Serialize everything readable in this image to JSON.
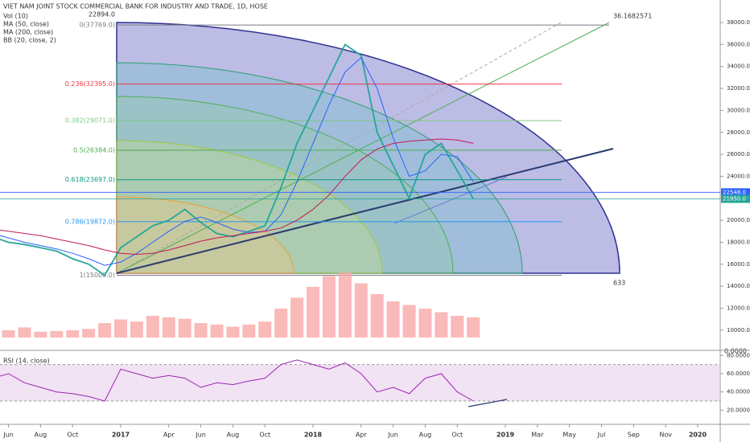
{
  "chart_data": {
    "type": "line",
    "title": "VIET NAM JOINT STOCK COMMERCIAL BANK FOR INDUSTRY AND TRADE, 1D, HOSE",
    "legend": [
      "Vol (10)",
      "MA (50, close)",
      "MA (200, close)",
      "BB (20, close, 2)"
    ],
    "x": [
      "2016-05",
      "2016-06",
      "2016-07",
      "2016-08",
      "2016-09",
      "2016-10",
      "2016-11",
      "2016-12",
      "2017-01",
      "2017-02",
      "2017-03",
      "2017-04",
      "2017-05",
      "2017-06",
      "2017-07",
      "2017-08",
      "2017-09",
      "2017-10",
      "2017-11",
      "2017-12",
      "2018-01",
      "2018-02",
      "2018-03",
      "2018-04",
      "2018-05",
      "2018-06",
      "2018-07",
      "2018-08",
      "2018-09",
      "2018-10",
      "2018-11"
    ],
    "series": [
      {
        "name": "Close",
        "color": "#26a69a",
        "values": [
          18500,
          18000,
          17800,
          17500,
          17200,
          16500,
          16000,
          15000,
          17500,
          18500,
          19500,
          20000,
          21000,
          19800,
          18800,
          18500,
          19000,
          19500,
          23000,
          27000,
          30000,
          33000,
          36000,
          35000,
          28000,
          25000,
          22000,
          26000,
          27000,
          24500,
          21950
        ]
      },
      {
        "name": "MA (50, close)",
        "color": "#2962ff",
        "values": [
          18800,
          18400,
          18000,
          17700,
          17400,
          17000,
          16500,
          15900,
          16200,
          17000,
          18000,
          19000,
          19900,
          20300,
          19800,
          19200,
          18900,
          19000,
          20500,
          23500,
          27000,
          30500,
          33500,
          34800,
          32000,
          27500,
          24000,
          24500,
          26000,
          25800,
          23500
        ]
      },
      {
        "name": "MA (200, close)",
        "color": "#c2185b",
        "values": [
          19200,
          19000,
          18800,
          18600,
          18300,
          18000,
          17700,
          17300,
          17000,
          16900,
          17000,
          17300,
          17700,
          18100,
          18400,
          18600,
          18800,
          19000,
          19300,
          20000,
          21000,
          22300,
          24000,
          25500,
          26500,
          27000,
          27200,
          27300,
          27400,
          27300,
          27000
        ]
      }
    ],
    "ylim": [
      8600,
      40050
    ],
    "yticks": [
      {
        "value": 10000,
        "label": "10000.0"
      },
      {
        "value": 12000,
        "label": "12000.0"
      },
      {
        "value": 14000,
        "label": "14000.0"
      },
      {
        "value": 16000,
        "label": "16000.0"
      },
      {
        "value": 18000,
        "label": "18000.0"
      },
      {
        "value": 20000,
        "label": "20000.0"
      },
      {
        "value": 22000,
        "label": "22000.0"
      },
      {
        "value": 24000,
        "label": "24000.0"
      },
      {
        "value": 26000,
        "label": "26000.0"
      },
      {
        "value": 28000,
        "label": "28000.0"
      },
      {
        "value": 30000,
        "label": "30000.0"
      },
      {
        "value": 32000,
        "label": "32000.0"
      },
      {
        "value": 34000,
        "label": "34000.0"
      },
      {
        "value": 36000,
        "label": "36000.0"
      },
      {
        "value": 38000,
        "label": "38000.0"
      }
    ],
    "xticks": [
      {
        "value": "2016-06",
        "label": "Jun"
      },
      {
        "value": "2016-08",
        "label": "Aug"
      },
      {
        "value": "2016-10",
        "label": "Oct"
      },
      {
        "value": "2017-01",
        "label": "2017"
      },
      {
        "value": "2017-04",
        "label": "Apr"
      },
      {
        "value": "2017-06",
        "label": "Jun"
      },
      {
        "value": "2017-08",
        "label": "Aug"
      },
      {
        "value": "2017-10",
        "label": "Oct"
      },
      {
        "value": "2018-01",
        "label": "2018"
      },
      {
        "value": "2018-04",
        "label": "Apr"
      },
      {
        "value": "2018-06",
        "label": "Jun"
      },
      {
        "value": "2018-08",
        "label": "Aug"
      },
      {
        "value": "2018-10",
        "label": "Oct"
      },
      {
        "value": "2019-01",
        "label": "2019"
      },
      {
        "value": "2019-03",
        "label": "Mar"
      },
      {
        "value": "2019-05",
        "label": "May"
      },
      {
        "value": "2019-07",
        "label": "Jul"
      },
      {
        "value": "2019-09",
        "label": "Sep"
      },
      {
        "value": "2019-11",
        "label": "Nov"
      },
      {
        "value": "2020-01",
        "label": "2020"
      }
    ],
    "fib_levels": [
      {
        "label": "0(37769.0)",
        "value": 37769,
        "color": "#787b86"
      },
      {
        "label": "0.236(32395.0)",
        "value": 32395,
        "color": "#f23645"
      },
      {
        "label": "0.382(29071.0)",
        "value": 29071,
        "color": "#81c784"
      },
      {
        "label": "0.5(26384.0)",
        "value": 26384,
        "color": "#4caf50"
      },
      {
        "label": "0.618(23697.0)",
        "value": 23697,
        "color": "#089981"
      },
      {
        "label": "0.786(19872.0)",
        "value": 19872,
        "color": "#2196f3"
      },
      {
        "label": "1(15000.0)",
        "value": 15000,
        "color": "#787b86"
      }
    ],
    "annotations": {
      "top_left": "22894.0",
      "top_right": "36.1682571",
      "bottom_right": "633"
    },
    "price_labels": [
      {
        "label": "22548.0",
        "value": 22548,
        "color": "#2962ff"
      },
      {
        "label": "21950.0",
        "value": 21950,
        "color": "#26a69a"
      }
    ],
    "volume": {
      "label": "0.0000",
      "color": "#f7a9a8",
      "ylim": [
        0,
        100
      ],
      "values": [
        12,
        10,
        14,
        8,
        9,
        10,
        12,
        20,
        25,
        22,
        30,
        28,
        26,
        20,
        18,
        15,
        18,
        22,
        40,
        55,
        70,
        85,
        90,
        75,
        60,
        50,
        45,
        40,
        35,
        30,
        28
      ]
    },
    "rsi": {
      "title": "RSI (14, close)",
      "color": "#9c27b0",
      "ylim": [
        8,
        82
      ],
      "band": [
        30,
        70
      ],
      "yticks": [
        {
          "value": 20,
          "label": "20.0000"
        },
        {
          "value": 40,
          "label": "40.0000"
        },
        {
          "value": 60,
          "label": "60.0000"
        },
        {
          "value": 80,
          "label": "80.0000"
        }
      ],
      "values": [
        55,
        60,
        50,
        45,
        40,
        38,
        35,
        30,
        65,
        60,
        55,
        58,
        55,
        45,
        50,
        48,
        52,
        55,
        70,
        75,
        70,
        65,
        72,
        60,
        40,
        45,
        38,
        55,
        60,
        40,
        30
      ]
    }
  }
}
